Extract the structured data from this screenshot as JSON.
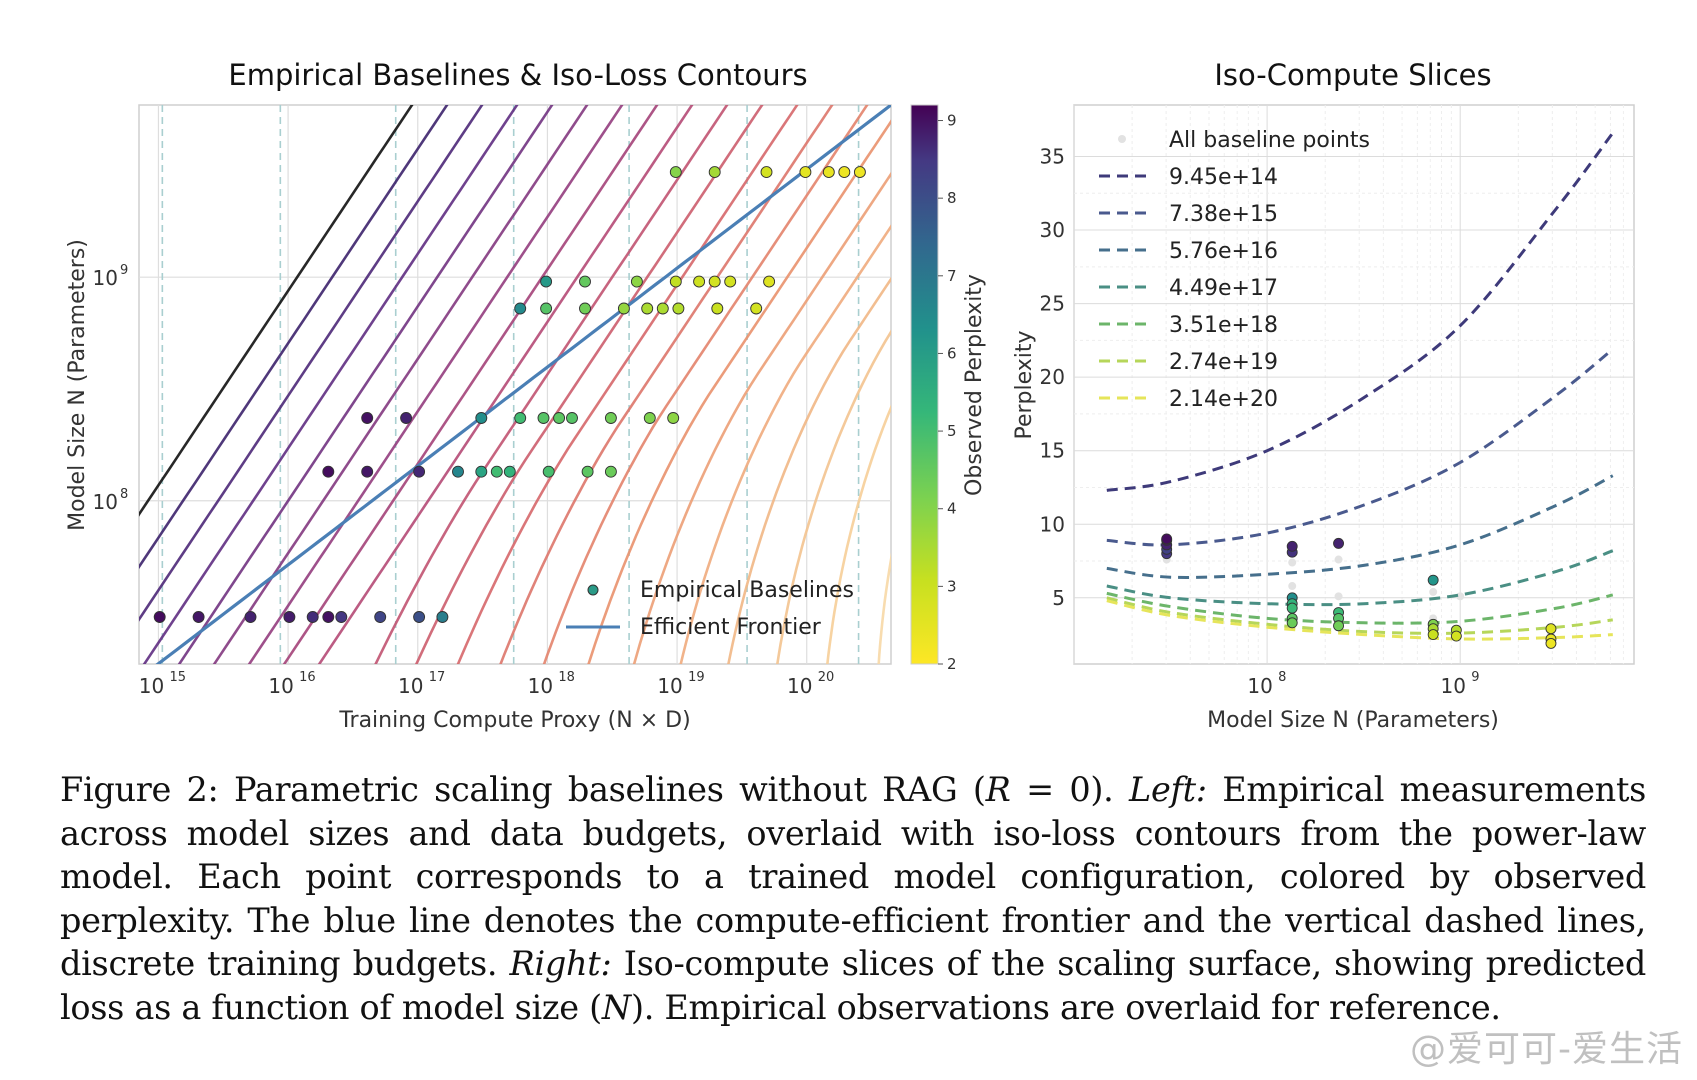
{
  "figure_label": "Figure 2:",
  "caption": {
    "part1": "Parametric scaling baselines without RAG (",
    "math1": "R",
    "part2": " = 0). ",
    "left_label": "Left:",
    "part3": " Empirical measurements across model sizes and data budgets, overlaid with iso-loss contours from the power-law model. Each point corresponds to a trained model configuration, colored by observed perplexity. The blue line denotes the compute-efficient frontier and the vertical dashed lines, discrete training budgets. ",
    "right_label": "Right:",
    "part4": " Iso-compute slices of the scaling surface, showing predicted loss as a function of model size (",
    "math2": "N",
    "part5": "). Empirical observations are overlaid for reference."
  },
  "watermark": "@爱可可-爱生活",
  "colors": {
    "frontier": "#4a7fb5",
    "grid": "#dcdcdc"
  },
  "chart_data": [
    {
      "type": "scatter",
      "title": "Empirical Baselines & Iso-Loss Contours",
      "xlabel": "Training Compute Proxy (N × D)",
      "ylabel": "Model Size N (Parameters)",
      "x_scale": "log",
      "y_scale": "log",
      "xlim_log10": [
        14.85,
        20.65
      ],
      "ylim_log10": [
        7.27,
        9.77
      ],
      "x_ticks": [
        {
          "base": "10",
          "exp": "15",
          "v": 15
        },
        {
          "base": "10",
          "exp": "16",
          "v": 16
        },
        {
          "base": "10",
          "exp": "17",
          "v": 17
        },
        {
          "base": "10",
          "exp": "18",
          "v": 18
        },
        {
          "base": "10",
          "exp": "19",
          "v": 19
        },
        {
          "base": "10",
          "exp": "20",
          "v": 20
        }
      ],
      "y_ticks": [
        {
          "base": "10",
          "exp": "8",
          "v": 8
        },
        {
          "base": "10",
          "exp": "9",
          "v": 9
        }
      ],
      "budget_lines_log10": [
        15.03,
        15.94,
        16.83,
        17.74,
        18.63,
        19.54,
        20.4
      ],
      "frontier": {
        "name": "Efficient Frontier",
        "log10x": [
          14.85,
          20.65
        ],
        "log10y": [
          7.205,
          9.77
        ]
      },
      "legend": {
        "position": "lower-right",
        "entries": [
          "Empirical Baselines",
          "Efficient Frontier"
        ]
      },
      "colorbar": {
        "label": "Observed Perplexity",
        "min": 2,
        "max": 9.2,
        "ticks": [
          "2",
          "3",
          "4",
          "5",
          "6",
          "7",
          "8",
          "9"
        ]
      },
      "points": [
        {
          "lx": 15.01,
          "ly": 7.48,
          "ppl": 9.0
        },
        {
          "lx": 15.31,
          "ly": 7.48,
          "ppl": 8.8
        },
        {
          "lx": 15.71,
          "ly": 7.48,
          "ppl": 8.6
        },
        {
          "lx": 16.01,
          "ly": 7.48,
          "ppl": 8.7
        },
        {
          "lx": 16.19,
          "ly": 7.48,
          "ppl": 8.4
        },
        {
          "lx": 16.31,
          "ly": 7.48,
          "ppl": 8.9
        },
        {
          "lx": 16.41,
          "ly": 7.48,
          "ppl": 8.2
        },
        {
          "lx": 16.71,
          "ly": 7.48,
          "ppl": 7.9
        },
        {
          "lx": 17.01,
          "ly": 7.48,
          "ppl": 7.7
        },
        {
          "lx": 17.19,
          "ly": 7.48,
          "ppl": 6.6
        },
        {
          "lx": 16.31,
          "ly": 8.13,
          "ppl": 9.0
        },
        {
          "lx": 16.61,
          "ly": 8.13,
          "ppl": 8.8
        },
        {
          "lx": 17.01,
          "ly": 8.13,
          "ppl": 8.5
        },
        {
          "lx": 17.31,
          "ly": 8.13,
          "ppl": 6.4
        },
        {
          "lx": 17.49,
          "ly": 8.13,
          "ppl": 5.6
        },
        {
          "lx": 17.61,
          "ly": 8.13,
          "ppl": 4.9
        },
        {
          "lx": 17.71,
          "ly": 8.13,
          "ppl": 5.2
        },
        {
          "lx": 18.01,
          "ly": 8.13,
          "ppl": 4.8
        },
        {
          "lx": 18.31,
          "ly": 8.13,
          "ppl": 4.5
        },
        {
          "lx": 18.49,
          "ly": 8.13,
          "ppl": 4.3
        },
        {
          "lx": 16.61,
          "ly": 8.37,
          "ppl": 8.9
        },
        {
          "lx": 16.91,
          "ly": 8.37,
          "ppl": 8.6
        },
        {
          "lx": 17.49,
          "ly": 8.37,
          "ppl": 6.2
        },
        {
          "lx": 17.79,
          "ly": 8.37,
          "ppl": 4.9
        },
        {
          "lx": 17.97,
          "ly": 8.37,
          "ppl": 4.6
        },
        {
          "lx": 18.09,
          "ly": 8.37,
          "ppl": 4.5
        },
        {
          "lx": 18.19,
          "ly": 8.37,
          "ppl": 4.6
        },
        {
          "lx": 18.49,
          "ly": 8.37,
          "ppl": 4.2
        },
        {
          "lx": 18.79,
          "ly": 8.37,
          "ppl": 4.0
        },
        {
          "lx": 18.97,
          "ly": 8.37,
          "ppl": 3.8
        },
        {
          "lx": 17.79,
          "ly": 8.86,
          "ppl": 6.3
        },
        {
          "lx": 17.99,
          "ly": 8.86,
          "ppl": 4.6
        },
        {
          "lx": 18.29,
          "ly": 8.86,
          "ppl": 4.2
        },
        {
          "lx": 18.59,
          "ly": 8.86,
          "ppl": 3.7
        },
        {
          "lx": 18.77,
          "ly": 8.86,
          "ppl": 3.4
        },
        {
          "lx": 18.89,
          "ly": 8.86,
          "ppl": 3.4
        },
        {
          "lx": 19.01,
          "ly": 8.86,
          "ppl": 3.3
        },
        {
          "lx": 19.31,
          "ly": 8.86,
          "ppl": 3.0
        },
        {
          "lx": 19.61,
          "ly": 8.86,
          "ppl": 2.8
        },
        {
          "lx": 17.99,
          "ly": 8.98,
          "ppl": 5.9
        },
        {
          "lx": 18.29,
          "ly": 8.98,
          "ppl": 4.4
        },
        {
          "lx": 18.69,
          "ly": 8.98,
          "ppl": 3.8
        },
        {
          "lx": 18.99,
          "ly": 8.98,
          "ppl": 3.1
        },
        {
          "lx": 19.17,
          "ly": 8.98,
          "ppl": 2.9
        },
        {
          "lx": 19.29,
          "ly": 8.98,
          "ppl": 2.8
        },
        {
          "lx": 19.41,
          "ly": 8.98,
          "ppl": 2.8
        },
        {
          "lx": 19.71,
          "ly": 8.98,
          "ppl": 2.6
        },
        {
          "lx": 18.99,
          "ly": 9.47,
          "ppl": 3.9
        },
        {
          "lx": 19.29,
          "ly": 9.47,
          "ppl": 3.5
        },
        {
          "lx": 19.69,
          "ly": 9.47,
          "ppl": 2.8
        },
        {
          "lx": 19.99,
          "ly": 9.47,
          "ppl": 2.5
        },
        {
          "lx": 20.17,
          "ly": 9.47,
          "ppl": 2.4
        },
        {
          "lx": 20.29,
          "ly": 9.47,
          "ppl": 2.3
        },
        {
          "lx": 20.41,
          "ly": 9.47,
          "ppl": 2.3
        }
      ]
    },
    {
      "type": "line",
      "title": "Iso-Compute Slices",
      "xlabel": "Model Size N (Parameters)",
      "ylabel": "Perplexity",
      "x_scale": "log",
      "xlim_log10": [
        7.0,
        9.9
      ],
      "ylim": [
        0.5,
        38.5
      ],
      "x_ticks": [
        {
          "base": "10",
          "exp": "8",
          "v": 8
        },
        {
          "base": "10",
          "exp": "9",
          "v": 9
        }
      ],
      "y_ticks": [
        5,
        10,
        15,
        20,
        25,
        30,
        35
      ],
      "legend": {
        "position": "upper-left",
        "points_label": "All baseline points"
      },
      "series": [
        {
          "name": "9.45e+14",
          "color": "#3e3a7a",
          "log10x": [
            7.17,
            7.5,
            8.0,
            8.5,
            9.0,
            9.5,
            9.79
          ],
          "y": [
            12.3,
            12.9,
            15.0,
            18.6,
            23.5,
            31.5,
            36.6
          ]
        },
        {
          "name": "7.38e+15",
          "color": "#4a5a8e",
          "log10x": [
            7.17,
            7.5,
            8.0,
            8.5,
            9.0,
            9.5,
            9.79
          ],
          "y": [
            8.9,
            8.6,
            9.4,
            11.3,
            14.2,
            18.8,
            21.9
          ]
        },
        {
          "name": "5.76e+16",
          "color": "#466f8c",
          "log10x": [
            7.17,
            7.5,
            8.0,
            8.5,
            9.0,
            9.5,
            9.79
          ],
          "y": [
            7.0,
            6.4,
            6.6,
            7.2,
            8.6,
            11.3,
            13.3
          ]
        },
        {
          "name": "4.49e+17",
          "color": "#4a8f84",
          "log10x": [
            7.17,
            7.5,
            8.0,
            8.5,
            9.0,
            9.5,
            9.79
          ],
          "y": [
            5.8,
            5.0,
            4.6,
            4.6,
            5.2,
            6.8,
            8.2
          ]
        },
        {
          "name": "3.51e+18",
          "color": "#6cb56a",
          "log10x": [
            7.17,
            7.5,
            8.0,
            8.5,
            9.0,
            9.5,
            9.79
          ],
          "y": [
            5.3,
            4.4,
            3.6,
            3.3,
            3.4,
            4.3,
            5.2
          ]
        },
        {
          "name": "2.74e+19",
          "color": "#b6d65a",
          "log10x": [
            7.17,
            7.5,
            8.0,
            8.5,
            9.0,
            9.5,
            9.79
          ],
          "y": [
            5.0,
            4.0,
            3.2,
            2.7,
            2.6,
            3.0,
            3.5
          ]
        },
        {
          "name": "2.14e+20",
          "color": "#e6e55a",
          "log10x": [
            7.17,
            7.5,
            8.0,
            8.5,
            9.0,
            9.5,
            9.79
          ],
          "y": [
            4.8,
            3.8,
            3.0,
            2.5,
            2.2,
            2.3,
            2.5
          ]
        }
      ],
      "empirical_points": [
        {
          "lx": 7.48,
          "y": 8.0,
          "ppl": 8.2
        },
        {
          "lx": 7.48,
          "y": 8.3,
          "ppl": 8.0
        },
        {
          "lx": 7.48,
          "y": 8.6,
          "ppl": 8.6
        },
        {
          "lx": 7.48,
          "y": 8.9,
          "ppl": 8.8
        },
        {
          "lx": 7.48,
          "y": 9.0,
          "ppl": 9.0
        },
        {
          "lx": 8.13,
          "y": 8.1,
          "ppl": 8.3
        },
        {
          "lx": 8.13,
          "y": 8.5,
          "ppl": 8.6
        },
        {
          "lx": 8.13,
          "y": 5.0,
          "ppl": 6.2
        },
        {
          "lx": 8.13,
          "y": 4.6,
          "ppl": 5.2
        },
        {
          "lx": 8.13,
          "y": 4.3,
          "ppl": 5.0
        },
        {
          "lx": 8.13,
          "y": 3.6,
          "ppl": 4.5
        },
        {
          "lx": 8.13,
          "y": 3.3,
          "ppl": 4.3
        },
        {
          "lx": 8.37,
          "y": 8.7,
          "ppl": 8.6
        },
        {
          "lx": 8.37,
          "y": 4.0,
          "ppl": 5.0
        },
        {
          "lx": 8.37,
          "y": 3.6,
          "ppl": 4.6
        },
        {
          "lx": 8.37,
          "y": 3.1,
          "ppl": 4.2
        },
        {
          "lx": 8.86,
          "y": 6.2,
          "ppl": 6.0
        },
        {
          "lx": 8.86,
          "y": 3.2,
          "ppl": 4.0
        },
        {
          "lx": 8.86,
          "y": 2.9,
          "ppl": 3.4
        },
        {
          "lx": 8.86,
          "y": 2.5,
          "ppl": 3.0
        },
        {
          "lx": 8.98,
          "y": 2.8,
          "ppl": 3.3
        },
        {
          "lx": 8.98,
          "y": 2.4,
          "ppl": 2.8
        },
        {
          "lx": 9.47,
          "y": 2.9,
          "ppl": 2.6
        },
        {
          "lx": 9.47,
          "y": 2.2,
          "ppl": 2.4
        },
        {
          "lx": 9.47,
          "y": 1.9,
          "ppl": 2.3
        }
      ],
      "baseline_points": [
        {
          "lx": 7.48,
          "y": 7.6
        },
        {
          "lx": 8.13,
          "y": 7.4
        },
        {
          "lx": 8.37,
          "y": 7.6
        },
        {
          "lx": 8.37,
          "y": 5.1
        },
        {
          "lx": 8.13,
          "y": 5.8
        },
        {
          "lx": 9.0,
          "y": 5.1
        },
        {
          "lx": 8.86,
          "y": 3.6
        },
        {
          "lx": 9.47,
          "y": 2.6
        },
        {
          "lx": 8.86,
          "y": 5.4
        }
      ]
    }
  ]
}
